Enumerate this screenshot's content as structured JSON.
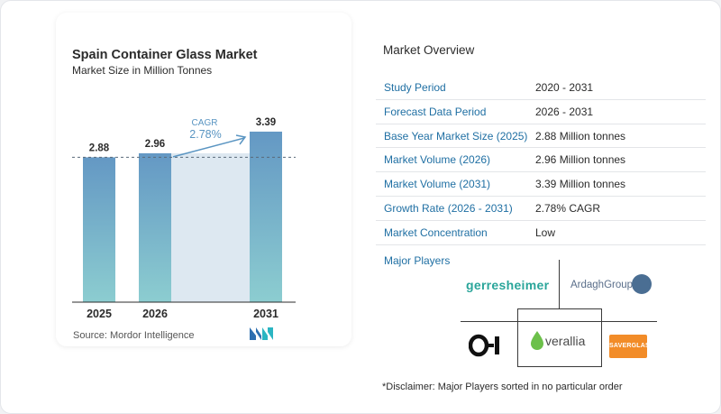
{
  "chart_data": {
    "type": "bar",
    "title": "Spain Container Glass Market",
    "subtitle": "Market Size in Million Tonnes",
    "categories": [
      "2025",
      "2026",
      "2031"
    ],
    "values": [
      2.88,
      2.96,
      3.39
    ],
    "value_labels": [
      "2.88",
      "2.96",
      "3.39"
    ],
    "ylim": [
      0,
      3.55
    ],
    "reference_line_value": 2.88,
    "annotation": {
      "label": "CAGR",
      "value": "2.78%"
    },
    "colors": {
      "bar_top": "#6498c4",
      "bar_bottom": "#8ccdd0",
      "band": "#dde8f1",
      "accent": "#5a95c2"
    }
  },
  "source": "Source:  Mordor Intelligence",
  "overview": {
    "title": "Market Overview",
    "rows": [
      {
        "label": "Study Period",
        "value": "2020 - 2031"
      },
      {
        "label": "Forecast Data Period",
        "value": "2026 - 2031"
      },
      {
        "label": "Base Year Market Size (2025)",
        "value": "2.88 Million tonnes"
      },
      {
        "label": "Market Volume (2026)",
        "value": "2.96 Million tonnes"
      },
      {
        "label": "Market Volume (2031)",
        "value": "3.39 Million tonnes"
      },
      {
        "label": "Growth Rate (2026 - 2031)",
        "value": "2.78% CAGR"
      },
      {
        "label": "Market Concentration",
        "value": "Low"
      }
    ]
  },
  "players": {
    "title": "Major Players",
    "logos": [
      "Gerresheimer",
      "Ardagh Group",
      "O-I",
      "Verallia",
      "Saverglass"
    ],
    "gerresheimer_text": "gerresheimer",
    "ardagh_text": "ArdaghGroup",
    "verallia_text": "verallia",
    "saverglass_text": "SAVERGLASS"
  },
  "disclaimer": "*Disclaimer: Major Players sorted in no particular order"
}
